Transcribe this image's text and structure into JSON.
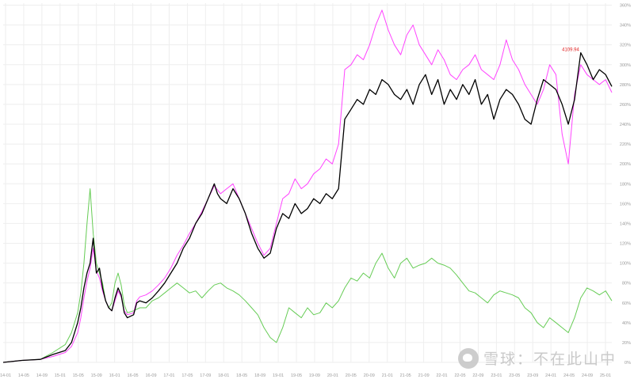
{
  "chart_data": {
    "type": "line",
    "x_tick_labels": [
      "14-01",
      "14-05",
      "14-09",
      "15-01",
      "15-05",
      "15-09",
      "16-01",
      "16-05",
      "16-09",
      "17-01",
      "17-05",
      "17-09",
      "18-01",
      "18-05",
      "18-09",
      "19-01",
      "19-05",
      "19-09",
      "20-01",
      "20-05",
      "20-09",
      "21-01",
      "21-05",
      "21-09",
      "22-01",
      "22-05",
      "22-09",
      "23-01",
      "23-05",
      "23-09",
      "24-01",
      "24-05",
      "24-09",
      "25-01"
    ],
    "y_tick_labels": [
      "0%",
      "20%",
      "40%",
      "60%",
      "80%",
      "100%",
      "120%",
      "140%",
      "160%",
      "180%",
      "200%",
      "220%",
      "240%",
      "260%",
      "280%",
      "300%",
      "320%",
      "340%",
      "360%"
    ],
    "ylim": [
      0,
      362
    ],
    "grid": true,
    "peak_label": "4109.94",
    "series": [
      {
        "color": "#000000",
        "values": [
          [
            0,
            0
          ],
          [
            3,
            2
          ],
          [
            6,
            3
          ],
          [
            8,
            8
          ],
          [
            10,
            12
          ],
          [
            11,
            20
          ],
          [
            12,
            40
          ],
          [
            12.5,
            55
          ],
          [
            13,
            75
          ],
          [
            13.5,
            90
          ],
          [
            14,
            100
          ],
          [
            14.5,
            125
          ],
          [
            15,
            90
          ],
          [
            15.5,
            95
          ],
          [
            16,
            75
          ],
          [
            16.5,
            62
          ],
          [
            17,
            55
          ],
          [
            17.5,
            52
          ],
          [
            18,
            65
          ],
          [
            18.5,
            75
          ],
          [
            19,
            68
          ],
          [
            19.5,
            50
          ],
          [
            20,
            45
          ],
          [
            21,
            48
          ],
          [
            21.5,
            60
          ],
          [
            22,
            62
          ],
          [
            23,
            60
          ],
          [
            24,
            65
          ],
          [
            25,
            72
          ],
          [
            26,
            80
          ],
          [
            27,
            90
          ],
          [
            28,
            100
          ],
          [
            29,
            115
          ],
          [
            30,
            125
          ],
          [
            31,
            140
          ],
          [
            32,
            150
          ],
          [
            33,
            165
          ],
          [
            34,
            180
          ],
          [
            34.5,
            170
          ],
          [
            35,
            165
          ],
          [
            36,
            160
          ],
          [
            37,
            175
          ],
          [
            38,
            165
          ],
          [
            39,
            150
          ],
          [
            40,
            130
          ],
          [
            41,
            115
          ],
          [
            42,
            105
          ],
          [
            43,
            110
          ],
          [
            44,
            135
          ],
          [
            45,
            150
          ],
          [
            46,
            145
          ],
          [
            47,
            160
          ],
          [
            48,
            150
          ],
          [
            49,
            155
          ],
          [
            50,
            165
          ],
          [
            51,
            160
          ],
          [
            52,
            170
          ],
          [
            53,
            165
          ],
          [
            54,
            175
          ],
          [
            55,
            245
          ],
          [
            56,
            255
          ],
          [
            57,
            265
          ],
          [
            58,
            260
          ],
          [
            59,
            275
          ],
          [
            60,
            270
          ],
          [
            61,
            285
          ],
          [
            62,
            280
          ],
          [
            63,
            270
          ],
          [
            64,
            265
          ],
          [
            65,
            275
          ],
          [
            66,
            260
          ],
          [
            67,
            280
          ],
          [
            68,
            290
          ],
          [
            69,
            270
          ],
          [
            70,
            285
          ],
          [
            71,
            260
          ],
          [
            72,
            275
          ],
          [
            73,
            265
          ],
          [
            74,
            280
          ],
          [
            75,
            270
          ],
          [
            76,
            285
          ],
          [
            77,
            260
          ],
          [
            78,
            270
          ],
          [
            79,
            245
          ],
          [
            80,
            265
          ],
          [
            81,
            275
          ],
          [
            82,
            270
          ],
          [
            83,
            260
          ],
          [
            84,
            245
          ],
          [
            85,
            240
          ],
          [
            86,
            265
          ],
          [
            87,
            285
          ],
          [
            88,
            280
          ],
          [
            89,
            275
          ],
          [
            90,
            260
          ],
          [
            91,
            240
          ],
          [
            92,
            265
          ],
          [
            93,
            312
          ],
          [
            94,
            300
          ],
          [
            95,
            285
          ],
          [
            96,
            295
          ],
          [
            97,
            290
          ],
          [
            98,
            278
          ]
        ]
      },
      {
        "color": "#ff44ff",
        "values": [
          [
            0,
            0
          ],
          [
            3,
            2
          ],
          [
            6,
            3
          ],
          [
            8,
            6
          ],
          [
            10,
            10
          ],
          [
            11,
            16
          ],
          [
            12,
            30
          ],
          [
            12.5,
            45
          ],
          [
            13,
            65
          ],
          [
            13.5,
            82
          ],
          [
            14,
            95
          ],
          [
            14.5,
            115
          ],
          [
            15,
            92
          ],
          [
            15.5,
            85
          ],
          [
            16,
            72
          ],
          [
            16.5,
            62
          ],
          [
            17,
            55
          ],
          [
            17.5,
            52
          ],
          [
            18,
            62
          ],
          [
            18.5,
            72
          ],
          [
            19,
            66
          ],
          [
            19.5,
            52
          ],
          [
            20,
            48
          ],
          [
            21,
            50
          ],
          [
            21.5,
            62
          ],
          [
            22,
            66
          ],
          [
            23,
            68
          ],
          [
            24,
            72
          ],
          [
            25,
            78
          ],
          [
            26,
            85
          ],
          [
            27,
            95
          ],
          [
            28,
            108
          ],
          [
            29,
            118
          ],
          [
            30,
            130
          ],
          [
            31,
            140
          ],
          [
            32,
            152
          ],
          [
            33,
            165
          ],
          [
            34,
            178
          ],
          [
            35,
            170
          ],
          [
            36,
            175
          ],
          [
            37,
            180
          ],
          [
            38,
            165
          ],
          [
            39,
            150
          ],
          [
            40,
            135
          ],
          [
            41,
            120
          ],
          [
            42,
            108
          ],
          [
            43,
            115
          ],
          [
            44,
            140
          ],
          [
            45,
            165
          ],
          [
            46,
            170
          ],
          [
            47,
            185
          ],
          [
            48,
            175
          ],
          [
            49,
            180
          ],
          [
            50,
            190
          ],
          [
            51,
            195
          ],
          [
            52,
            205
          ],
          [
            53,
            200
          ],
          [
            54,
            220
          ],
          [
            55,
            295
          ],
          [
            56,
            300
          ],
          [
            57,
            310
          ],
          [
            58,
            305
          ],
          [
            59,
            320
          ],
          [
            60,
            340
          ],
          [
            61,
            355
          ],
          [
            62,
            335
          ],
          [
            63,
            320
          ],
          [
            64,
            310
          ],
          [
            65,
            330
          ],
          [
            66,
            340
          ],
          [
            67,
            320
          ],
          [
            68,
            310
          ],
          [
            69,
            300
          ],
          [
            70,
            315
          ],
          [
            71,
            305
          ],
          [
            72,
            290
          ],
          [
            73,
            285
          ],
          [
            74,
            295
          ],
          [
            75,
            300
          ],
          [
            76,
            310
          ],
          [
            77,
            295
          ],
          [
            78,
            290
          ],
          [
            79,
            285
          ],
          [
            80,
            300
          ],
          [
            81,
            325
          ],
          [
            82,
            305
          ],
          [
            83,
            295
          ],
          [
            84,
            280
          ],
          [
            85,
            270
          ],
          [
            86,
            260
          ],
          [
            87,
            275
          ],
          [
            88,
            300
          ],
          [
            89,
            290
          ],
          [
            90,
            230
          ],
          [
            91,
            200
          ],
          [
            92,
            270
          ],
          [
            93,
            300
          ],
          [
            94,
            290
          ],
          [
            95,
            285
          ],
          [
            96,
            280
          ],
          [
            97,
            285
          ],
          [
            98,
            272
          ]
        ]
      },
      {
        "color": "#66cc55",
        "values": [
          [
            0,
            0
          ],
          [
            3,
            2
          ],
          [
            6,
            3
          ],
          [
            8,
            10
          ],
          [
            10,
            18
          ],
          [
            11,
            30
          ],
          [
            12,
            50
          ],
          [
            12.5,
            70
          ],
          [
            13,
            100
          ],
          [
            13.5,
            140
          ],
          [
            14,
            175
          ],
          [
            14.5,
            130
          ],
          [
            15,
            100
          ],
          [
            15.5,
            90
          ],
          [
            16,
            80
          ],
          [
            16.5,
            62
          ],
          [
            17,
            55
          ],
          [
            17.5,
            60
          ],
          [
            18,
            80
          ],
          [
            18.5,
            90
          ],
          [
            19,
            78
          ],
          [
            19.5,
            58
          ],
          [
            20,
            50
          ],
          [
            21,
            52
          ],
          [
            22,
            55
          ],
          [
            23,
            55
          ],
          [
            24,
            62
          ],
          [
            25,
            65
          ],
          [
            26,
            70
          ],
          [
            27,
            75
          ],
          [
            28,
            80
          ],
          [
            29,
            75
          ],
          [
            30,
            70
          ],
          [
            31,
            72
          ],
          [
            32,
            65
          ],
          [
            33,
            72
          ],
          [
            34,
            78
          ],
          [
            35,
            80
          ],
          [
            36,
            75
          ],
          [
            37,
            72
          ],
          [
            38,
            68
          ],
          [
            39,
            62
          ],
          [
            40,
            55
          ],
          [
            41,
            48
          ],
          [
            42,
            35
          ],
          [
            43,
            25
          ],
          [
            44,
            20
          ],
          [
            45,
            35
          ],
          [
            46,
            55
          ],
          [
            47,
            50
          ],
          [
            48,
            45
          ],
          [
            49,
            55
          ],
          [
            50,
            48
          ],
          [
            51,
            50
          ],
          [
            52,
            60
          ],
          [
            53,
            55
          ],
          [
            54,
            62
          ],
          [
            55,
            75
          ],
          [
            56,
            85
          ],
          [
            57,
            82
          ],
          [
            58,
            90
          ],
          [
            59,
            85
          ],
          [
            60,
            100
          ],
          [
            61,
            110
          ],
          [
            62,
            95
          ],
          [
            63,
            85
          ],
          [
            64,
            100
          ],
          [
            65,
            105
          ],
          [
            66,
            95
          ],
          [
            67,
            98
          ],
          [
            68,
            100
          ],
          [
            69,
            105
          ],
          [
            70,
            100
          ],
          [
            71,
            98
          ],
          [
            72,
            95
          ],
          [
            73,
            88
          ],
          [
            74,
            80
          ],
          [
            75,
            72
          ],
          [
            76,
            70
          ],
          [
            77,
            65
          ],
          [
            78,
            60
          ],
          [
            79,
            68
          ],
          [
            80,
            72
          ],
          [
            81,
            70
          ],
          [
            82,
            68
          ],
          [
            83,
            65
          ],
          [
            84,
            55
          ],
          [
            85,
            50
          ],
          [
            86,
            40
          ],
          [
            87,
            35
          ],
          [
            88,
            45
          ],
          [
            89,
            40
          ],
          [
            90,
            35
          ],
          [
            91,
            30
          ],
          [
            92,
            45
          ],
          [
            93,
            65
          ],
          [
            94,
            75
          ],
          [
            95,
            72
          ],
          [
            96,
            68
          ],
          [
            97,
            72
          ],
          [
            98,
            62
          ]
        ]
      }
    ]
  },
  "watermark": {
    "logo_icon": "snowball-logo-icon",
    "text": "雪球：不在此山中"
  }
}
